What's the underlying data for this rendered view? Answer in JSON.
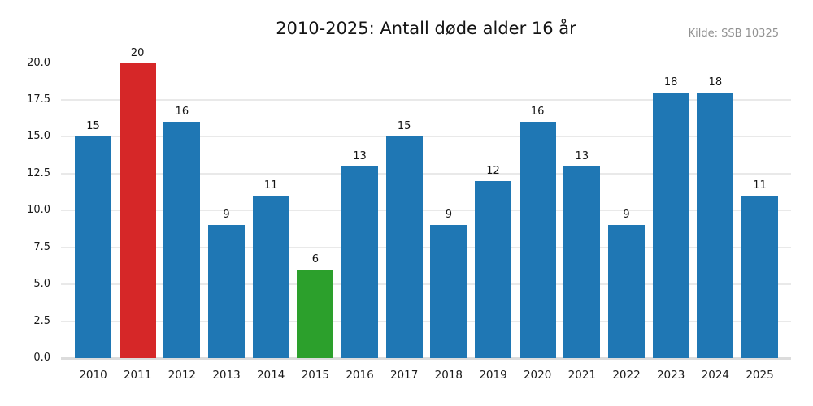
{
  "chart_data": {
    "type": "bar",
    "title": "2010-2025: Antall døde alder 16 år",
    "source": "Kilde: SSB 10325",
    "categories": [
      "2010",
      "2011",
      "2012",
      "2013",
      "2014",
      "2015",
      "2016",
      "2017",
      "2018",
      "2019",
      "2020",
      "2021",
      "2022",
      "2023",
      "2024",
      "2025"
    ],
    "values": [
      15,
      20,
      16,
      9,
      11,
      6,
      13,
      15,
      9,
      12,
      16,
      13,
      9,
      18,
      18,
      11
    ],
    "bar_colors": [
      "#1f77b4",
      "#d62728",
      "#1f77b4",
      "#1f77b4",
      "#1f77b4",
      "#2ca02c",
      "#1f77b4",
      "#1f77b4",
      "#1f77b4",
      "#1f77b4",
      "#1f77b4",
      "#1f77b4",
      "#1f77b4",
      "#1f77b4",
      "#1f77b4",
      "#1f77b4"
    ],
    "palette": {
      "default": "#1f77b4",
      "highlight_max": "#d62728",
      "highlight_min": "#2ca02c"
    },
    "yticks": [
      {
        "value": 0,
        "label": "0.0"
      },
      {
        "value": 2.5,
        "label": "2.5"
      },
      {
        "value": 5,
        "label": "5.0"
      },
      {
        "value": 7.5,
        "label": "7.5"
      },
      {
        "value": 10,
        "label": "10.0"
      },
      {
        "value": 12.5,
        "label": "12.5"
      },
      {
        "value": 15,
        "label": "15.0"
      },
      {
        "value": 17.5,
        "label": "17.5"
      },
      {
        "value": 20,
        "label": "20.0"
      }
    ],
    "ylim": [
      0,
      20
    ],
    "xlabel": "",
    "ylabel": "",
    "grid": "horizontal",
    "legend": "none"
  }
}
